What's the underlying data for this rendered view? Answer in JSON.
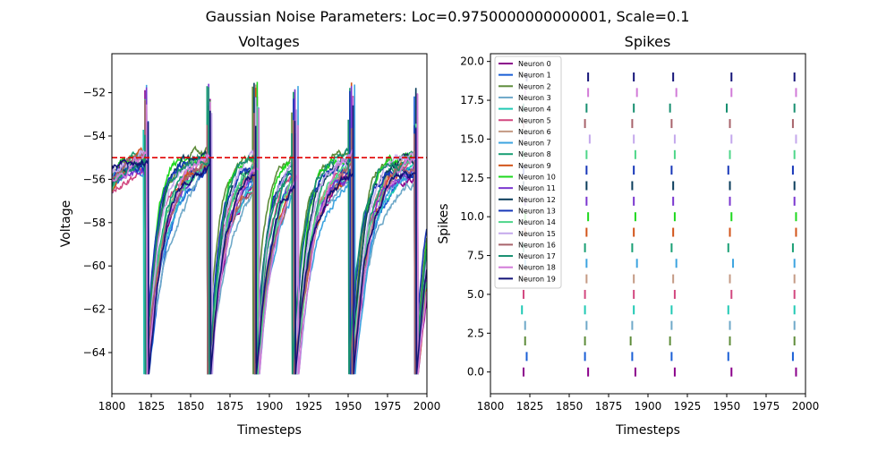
{
  "figure": {
    "suptitle": "Gaussian Noise Parameters: Loc=0.9750000000000001, Scale=0.1"
  },
  "colors": {
    "neurons": [
      "#8B008B",
      "#1A5FD6",
      "#5E8C3A",
      "#6FA9C9",
      "#20C9B4",
      "#D2477F",
      "#C49A84",
      "#3DA4E0",
      "#199F74",
      "#D2541A",
      "#1ED81E",
      "#7A36CF",
      "#0B3D5C",
      "#1737B8",
      "#4FD68A",
      "#C4A8EC",
      "#A8636B",
      "#178F70",
      "#D27BD8",
      "#141478"
    ],
    "threshold": "#E00000"
  },
  "chart_data": [
    {
      "type": "line",
      "title": "Voltages",
      "xlabel": "Timesteps",
      "ylabel": "Voltage",
      "xlim": [
        1800,
        2000
      ],
      "ylim": [
        -65.9,
        -50.2
      ],
      "xticks": [
        "1800",
        "1825",
        "1850",
        "1875",
        "1900",
        "1925",
        "1950",
        "1975",
        "2000"
      ],
      "yticks": [
        "−64",
        "−62",
        "−60",
        "−58",
        "−56",
        "−54",
        "−52"
      ],
      "ytick_values": [
        -64,
        -62,
        -60,
        -58,
        -56,
        -54,
        -52
      ],
      "xtick_values": [
        1800,
        1825,
        1850,
        1875,
        1900,
        1925,
        1950,
        1975,
        2000
      ],
      "threshold": -55,
      "reset": -65,
      "spike_times_approx": [
        1820,
        1861,
        1892,
        1915,
        1952,
        1992
      ],
      "grid": false
    },
    {
      "type": "scatter",
      "title": "Spikes",
      "xlabel": "Timesteps",
      "ylabel": "Spikes",
      "xlim": [
        1800,
        2000
      ],
      "ylim": [
        -1.4,
        20.5
      ],
      "xticks": [
        "1800",
        "1825",
        "1850",
        "1875",
        "1900",
        "1925",
        "1950",
        "1975",
        "2000"
      ],
      "yticks": [
        "0.0",
        "2.5",
        "5.0",
        "7.5",
        "10.0",
        "12.5",
        "15.0",
        "17.5",
        "20.0"
      ],
      "ytick_values": [
        0,
        2.5,
        5,
        7.5,
        10,
        12.5,
        15,
        17.5,
        20
      ],
      "xtick_values": [
        1800,
        1825,
        1850,
        1875,
        1900,
        1925,
        1950,
        1975,
        2000
      ],
      "marker": "vertical tick",
      "legend_placement": "upper-left",
      "grid": false,
      "series": [
        {
          "name": "Neuron 0",
          "y": 0,
          "x": [
            1821,
            1862,
            1892,
            1917,
            1953,
            1994
          ]
        },
        {
          "name": "Neuron 1",
          "y": 1,
          "x": [
            1823,
            1860,
            1890,
            1915,
            1951,
            1992
          ]
        },
        {
          "name": "Neuron 2",
          "y": 2,
          "x": [
            1822,
            1860,
            1889,
            1914,
            1952,
            1993
          ]
        },
        {
          "name": "Neuron 3",
          "y": 3,
          "x": [
            1822,
            1861,
            1890,
            1915,
            1952,
            1993
          ]
        },
        {
          "name": "Neuron 4",
          "y": 4,
          "x": [
            1820,
            1860,
            1891,
            1915,
            1951,
            1993
          ]
        },
        {
          "name": "Neuron 5",
          "y": 5,
          "x": [
            1821,
            1860,
            1891,
            1917,
            1953,
            1993
          ]
        },
        {
          "name": "Neuron 6",
          "y": 6,
          "x": [
            1822,
            1861,
            1891,
            1916,
            1952,
            1993
          ]
        },
        {
          "name": "Neuron 7",
          "y": 7,
          "x": [
            1822,
            1861,
            1893,
            1918,
            1954,
            1993
          ]
        },
        {
          "name": "Neuron 8",
          "y": 8,
          "x": [
            1821,
            1860,
            1890,
            1915,
            1951,
            1992
          ]
        },
        {
          "name": "Neuron 9",
          "y": 9,
          "x": [
            1822,
            1861,
            1891,
            1916,
            1952,
            1994
          ]
        },
        {
          "name": "Neuron 10",
          "y": 10,
          "x": [
            1822,
            1862,
            1892,
            1917,
            1953,
            1994
          ]
        },
        {
          "name": "Neuron 11",
          "y": 11,
          "x": [
            1822,
            1861,
            1891,
            1916,
            1952,
            1993
          ]
        },
        {
          "name": "Neuron 12",
          "y": 12,
          "x": [
            1821,
            1861,
            1890,
            1916,
            1952,
            1993
          ]
        },
        {
          "name": "Neuron 13",
          "y": 13,
          "x": [
            1821,
            1861,
            1891,
            1915,
            1951,
            1992
          ]
        },
        {
          "name": "Neuron 14",
          "y": 14,
          "x": [
            1821,
            1861,
            1892,
            1917,
            1952,
            1993
          ]
        },
        {
          "name": "Neuron 15",
          "y": 15,
          "x": [
            1822,
            1863,
            1891,
            1917,
            1953,
            1994
          ]
        },
        {
          "name": "Neuron 16",
          "y": 16,
          "x": [
            1821,
            1860,
            1890,
            1915,
            1952,
            1992
          ]
        },
        {
          "name": "Neuron 17",
          "y": 17,
          "x": [
            1821,
            1861,
            1891,
            1914,
            1950,
            1993
          ]
        },
        {
          "name": "Neuron 18",
          "y": 18,
          "x": [
            1822,
            1862,
            1893,
            1918,
            1953,
            1994
          ]
        },
        {
          "name": "Neuron 19",
          "y": 19,
          "x": [
            1823,
            1862,
            1891,
            1916,
            1953,
            1993
          ]
        }
      ]
    }
  ]
}
